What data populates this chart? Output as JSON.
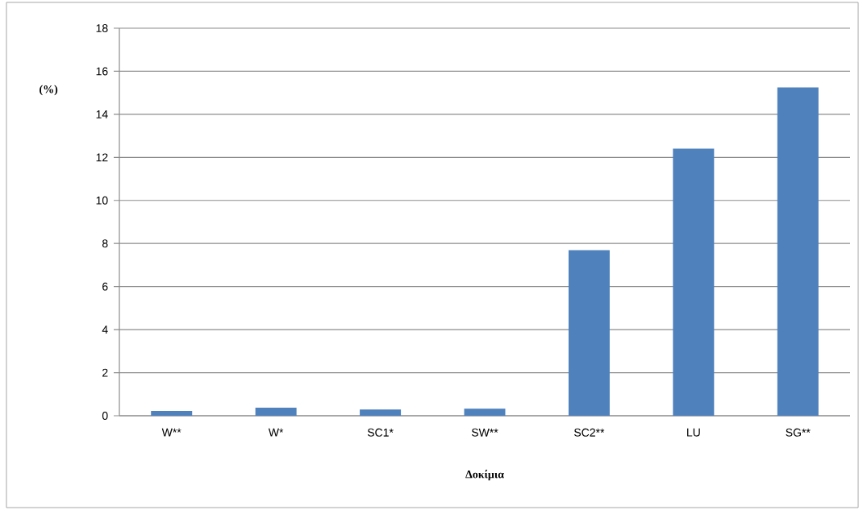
{
  "chart_data": {
    "type": "bar",
    "xlabel": "Δοκίμια",
    "ylabel": "(%)",
    "categories": [
      "W**",
      "W*",
      "SC1*",
      "SW**",
      "SC2**",
      "LU",
      "SG**"
    ],
    "values": [
      0.22,
      0.37,
      0.29,
      0.33,
      7.69,
      12.41,
      15.25
    ],
    "color": "#4f81bd",
    "ylim": [
      0,
      18
    ],
    "yticks": [
      0,
      2,
      4,
      6,
      8,
      10,
      12,
      14,
      16,
      18
    ],
    "grid": "y"
  }
}
